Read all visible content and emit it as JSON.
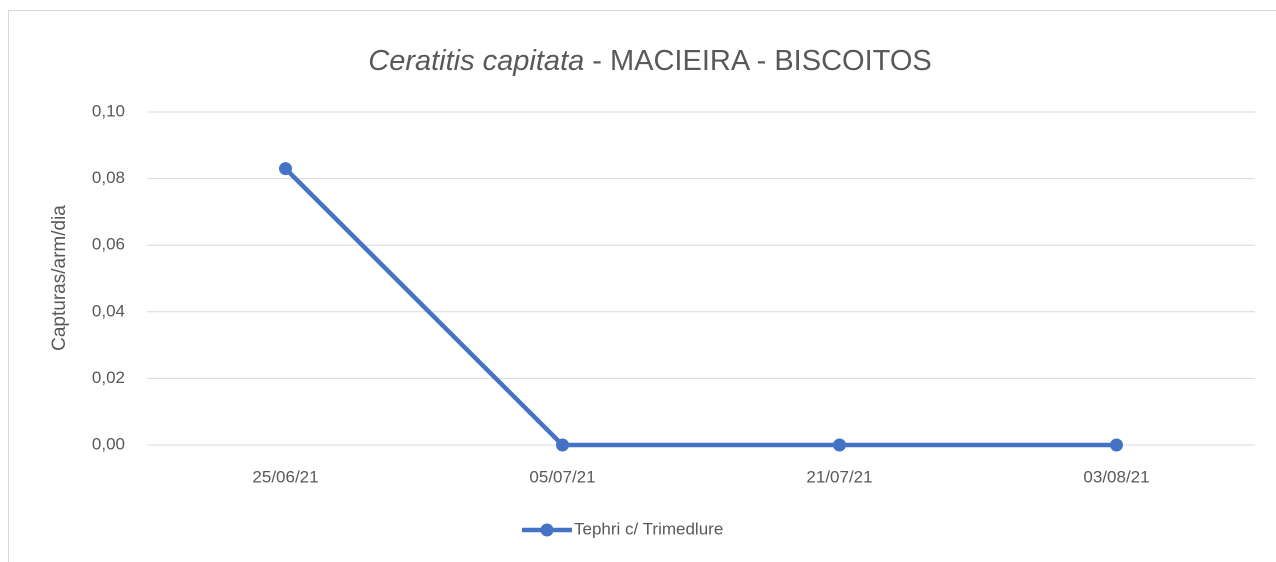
{
  "chart_data": {
    "type": "line",
    "title": {
      "italic": "Ceratitis capitata",
      "rest": "- MACIEIRA - BISCOITOS"
    },
    "y_label": "Capturas/arm/dia",
    "categories": [
      "25/06/21",
      "05/07/21",
      "21/07/21",
      "03/08/21"
    ],
    "series": [
      {
        "name": "Tephri c/ Trimedlure",
        "color": "#4472c4",
        "values": [
          0.083,
          0,
          0,
          0
        ]
      }
    ],
    "ylim": [
      0,
      0.1
    ],
    "yticks": [
      {
        "value": 0,
        "label": "0,00"
      },
      {
        "value": 0.02,
        "label": "0,02"
      },
      {
        "value": 0.04,
        "label": "0,04"
      },
      {
        "value": 0.06,
        "label": "0,06"
      },
      {
        "value": 0.08,
        "label": "0,08"
      },
      {
        "value": 0.1,
        "label": "0,10"
      }
    ],
    "grid": true,
    "legend": "bottom"
  }
}
